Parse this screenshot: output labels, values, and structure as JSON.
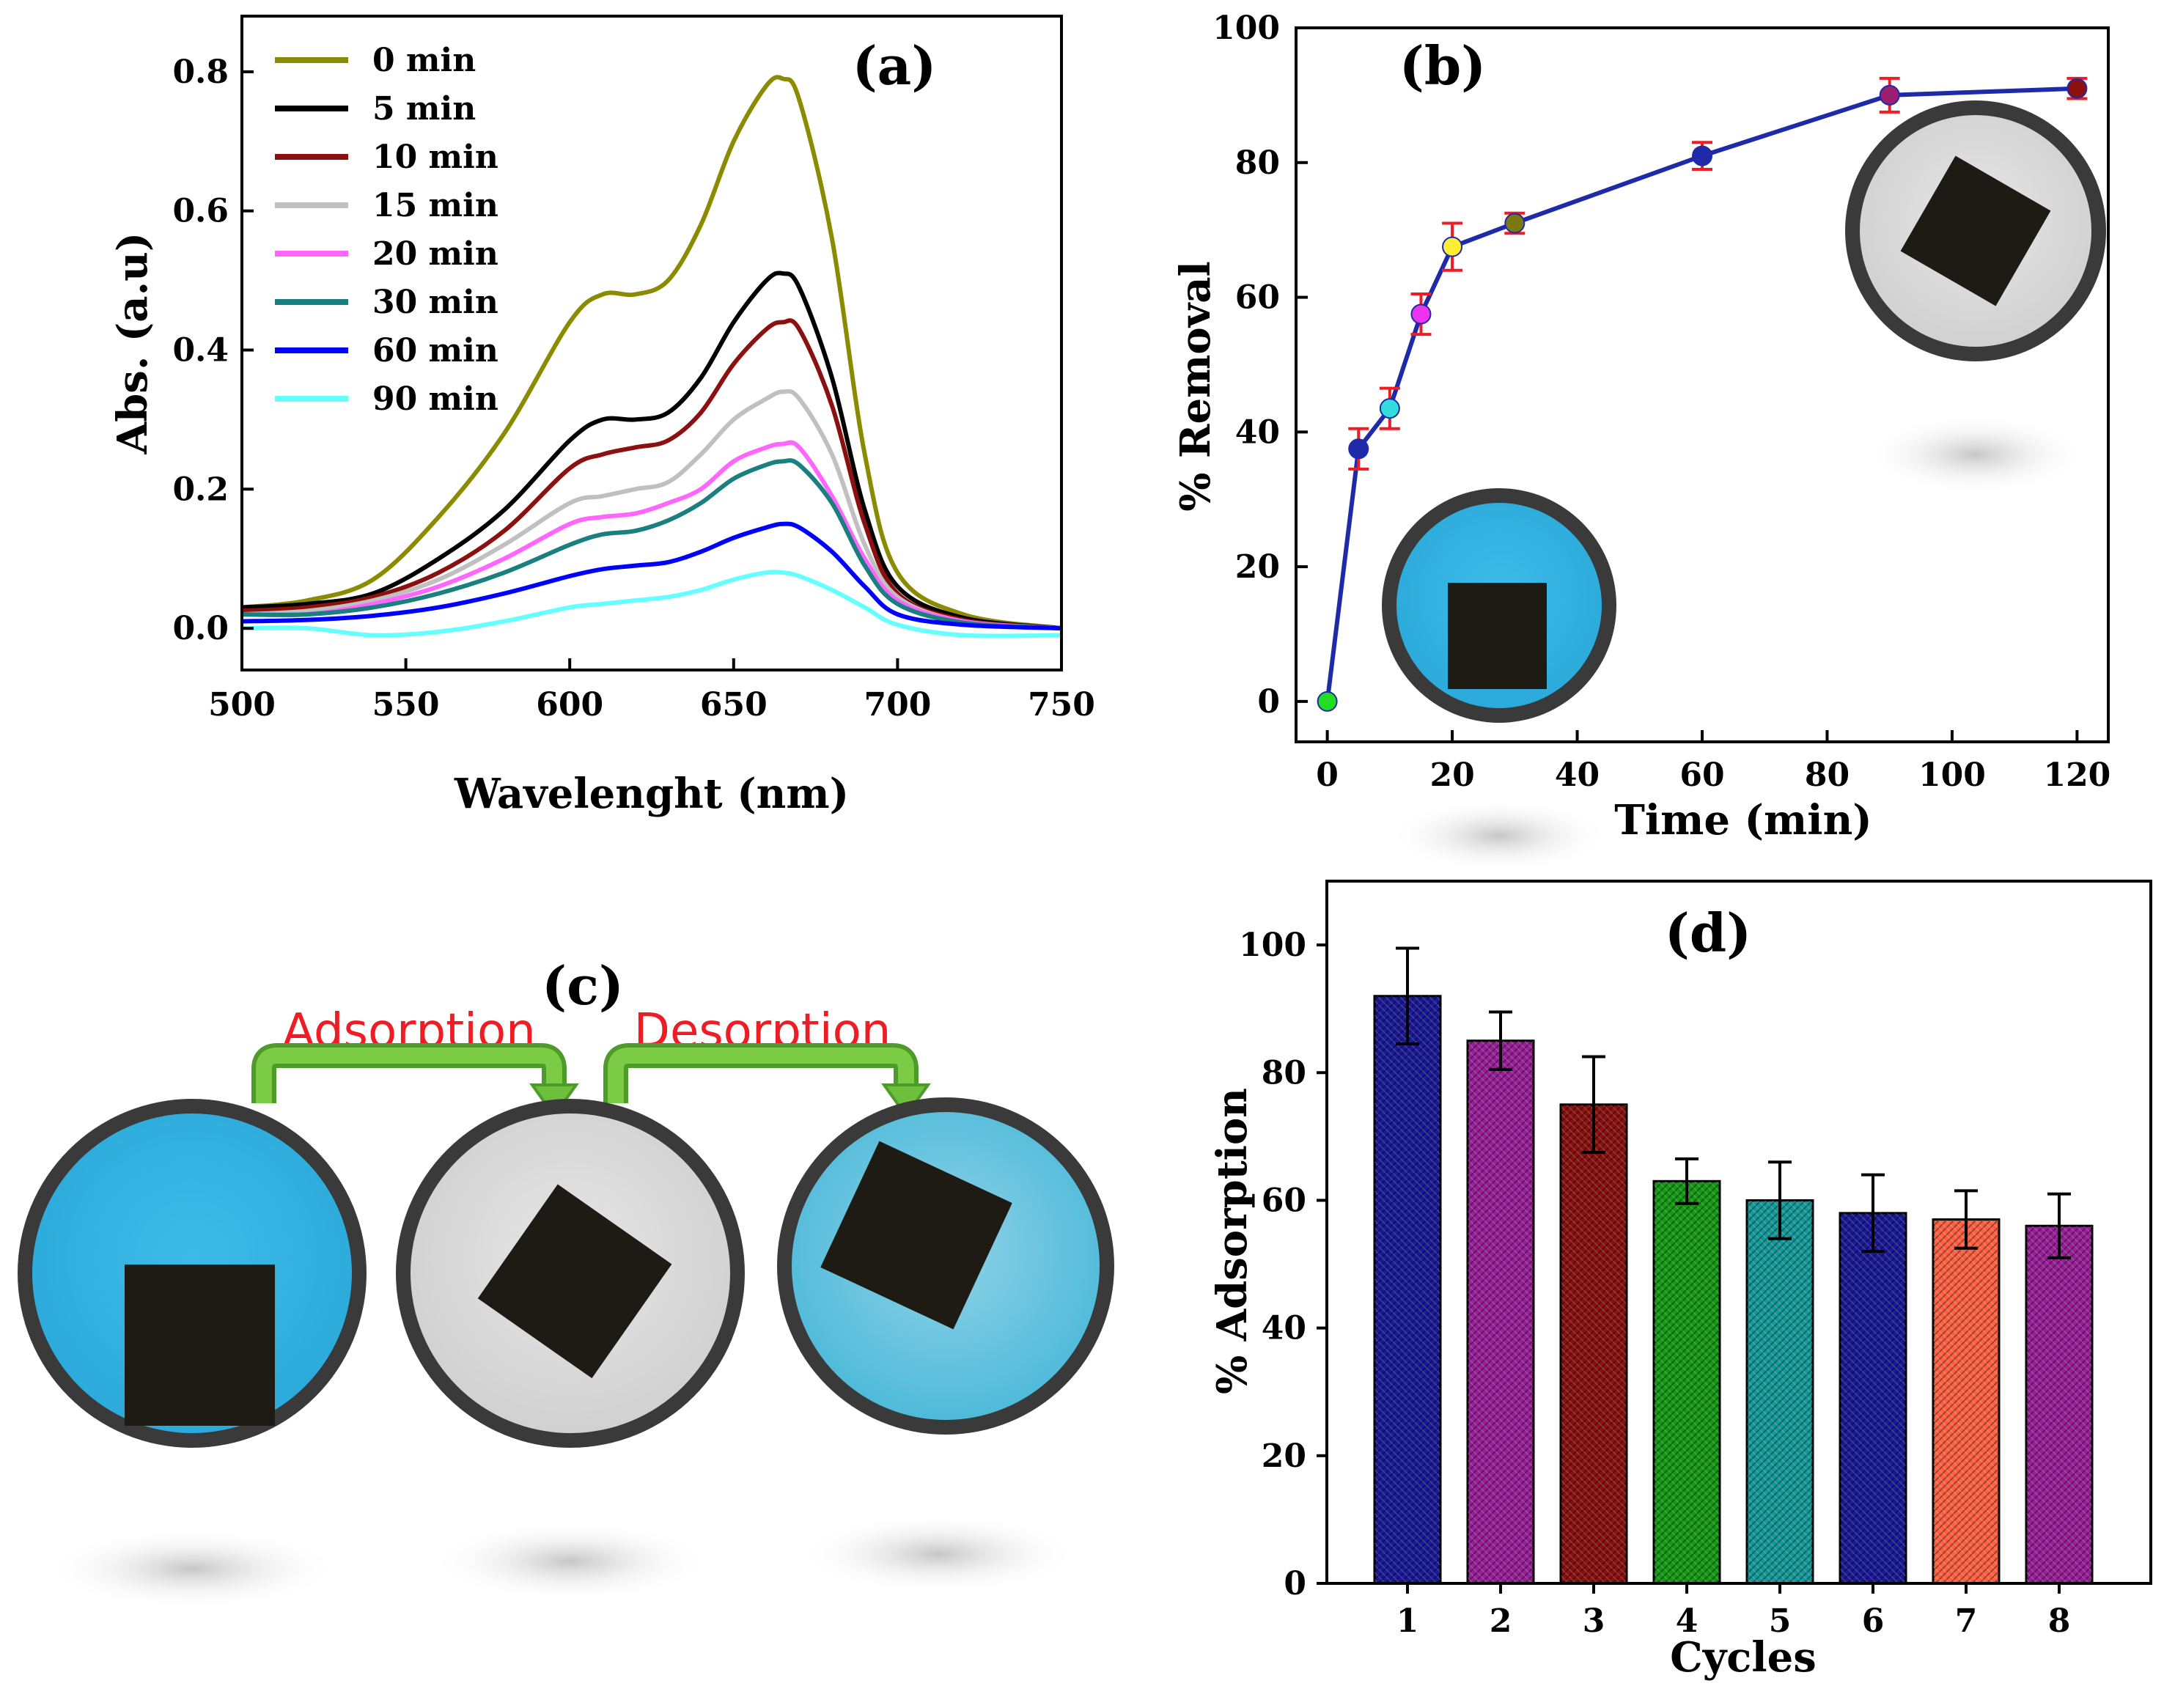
{
  "colors": {
    "blue_solution": "#2fb3e3",
    "clear_solution": "#d9d9d9",
    "dish_rim": "#3a3a3a",
    "sample": "#1e1a14",
    "arrow_green": "#6dbf3c",
    "flow_label": "#ee1c24",
    "panel_b_line": "#1f2aa8"
  },
  "panels": {
    "c": {
      "label": "(c)",
      "step1": "Adsorption",
      "step2": "Desorption",
      "dishes": [
        {
          "state": "dye-solution",
          "icon": "petri-dish-blue-icon"
        },
        {
          "state": "decolorized",
          "icon": "petri-dish-clear-icon"
        },
        {
          "state": "desorbed",
          "icon": "petri-dish-blue-icon"
        }
      ]
    }
  },
  "chart_data": [
    {
      "id": "a",
      "type": "line",
      "label": "(a)",
      "xlabel": "Wavelenght (nm)",
      "ylabel": "Abs. (a.u)",
      "xlim": [
        500,
        750
      ],
      "ylim": [
        -0.06,
        0.88
      ],
      "xticks": [
        500,
        550,
        600,
        650,
        700,
        750
      ],
      "yticks": [
        0.0,
        0.2,
        0.4,
        0.6,
        0.8
      ],
      "ytick_labels": [
        "0.0",
        "0.2",
        "0.4",
        "0.6",
        "0.8"
      ],
      "x": [
        500,
        520,
        540,
        560,
        580,
        600,
        610,
        620,
        630,
        640,
        650,
        660,
        665,
        670,
        680,
        690,
        700,
        720,
        750
      ],
      "series": [
        {
          "name": "0 min",
          "color": "#8b8b00",
          "values": [
            0.03,
            0.04,
            0.07,
            0.16,
            0.28,
            0.44,
            0.48,
            0.48,
            0.5,
            0.58,
            0.7,
            0.78,
            0.79,
            0.76,
            0.56,
            0.25,
            0.08,
            0.02,
            0.0
          ]
        },
        {
          "name": "5 min",
          "color": "#000000",
          "values": [
            0.03,
            0.035,
            0.05,
            0.1,
            0.17,
            0.27,
            0.3,
            0.3,
            0.31,
            0.36,
            0.44,
            0.5,
            0.51,
            0.49,
            0.36,
            0.17,
            0.06,
            0.015,
            0.0
          ]
        },
        {
          "name": "10 min",
          "color": "#8b1010",
          "values": [
            0.025,
            0.03,
            0.045,
            0.08,
            0.14,
            0.23,
            0.25,
            0.26,
            0.27,
            0.31,
            0.38,
            0.43,
            0.44,
            0.43,
            0.32,
            0.15,
            0.05,
            0.012,
            0.0
          ]
        },
        {
          "name": "15 min",
          "color": "#c0c0c0",
          "values": [
            0.02,
            0.025,
            0.04,
            0.07,
            0.12,
            0.18,
            0.19,
            0.2,
            0.21,
            0.25,
            0.3,
            0.33,
            0.34,
            0.33,
            0.25,
            0.12,
            0.045,
            0.01,
            0.0
          ]
        },
        {
          "name": "20 min",
          "color": "#ff66ff",
          "values": [
            0.02,
            0.02,
            0.035,
            0.06,
            0.1,
            0.15,
            0.16,
            0.165,
            0.18,
            0.2,
            0.24,
            0.26,
            0.265,
            0.26,
            0.19,
            0.1,
            0.04,
            0.01,
            0.0
          ]
        },
        {
          "name": "30 min",
          "color": "#1a7f7f",
          "values": [
            0.02,
            0.02,
            0.03,
            0.05,
            0.08,
            0.12,
            0.135,
            0.14,
            0.155,
            0.18,
            0.215,
            0.235,
            0.24,
            0.235,
            0.18,
            0.09,
            0.035,
            0.008,
            0.0
          ]
        },
        {
          "name": "60 min",
          "color": "#0000ff",
          "values": [
            0.01,
            0.012,
            0.018,
            0.03,
            0.05,
            0.075,
            0.085,
            0.09,
            0.095,
            0.11,
            0.13,
            0.145,
            0.15,
            0.145,
            0.11,
            0.06,
            0.02,
            0.005,
            0.0
          ]
        },
        {
          "name": "90 min",
          "color": "#66ffff",
          "values": [
            0.0,
            0.0,
            -0.01,
            -0.005,
            0.01,
            0.03,
            0.035,
            0.04,
            0.045,
            0.055,
            0.07,
            0.08,
            0.08,
            0.075,
            0.055,
            0.03,
            0.005,
            -0.01,
            -0.01
          ]
        }
      ]
    },
    {
      "id": "b",
      "type": "scatter",
      "label": "(b)",
      "xlabel": "Time (min)",
      "ylabel": "% Removal",
      "xlim": [
        -5,
        125
      ],
      "ylim": [
        -6,
        100
      ],
      "xticks": [
        0,
        20,
        40,
        60,
        80,
        100,
        120
      ],
      "yticks": [
        0,
        20,
        40,
        60,
        80,
        100
      ],
      "line_color": "#1f2aa8",
      "points": [
        {
          "x": 0,
          "y": 0,
          "err": 0,
          "color": "#22dd22"
        },
        {
          "x": 5,
          "y": 37.5,
          "err": 3,
          "color": "#1f2aa8"
        },
        {
          "x": 10,
          "y": 43.5,
          "err": 3,
          "color": "#33dddd"
        },
        {
          "x": 15,
          "y": 57.5,
          "err": 3,
          "color": "#ee33ee"
        },
        {
          "x": 20,
          "y": 67.5,
          "err": 3.5,
          "color": "#ffee33"
        },
        {
          "x": 30,
          "y": 71,
          "err": 1.5,
          "color": "#7a7a10"
        },
        {
          "x": 60,
          "y": 81,
          "err": 2,
          "color": "#1f2aa8"
        },
        {
          "x": 90,
          "y": 90,
          "err": 2.5,
          "color": "#9b1f6e"
        },
        {
          "x": 120,
          "y": 91,
          "err": 1.5,
          "color": "#8b1010"
        }
      ]
    },
    {
      "id": "d",
      "type": "bar",
      "label": "(d)",
      "xlabel": "Cycles",
      "ylabel": "% Adsorption",
      "categories": [
        "1",
        "2",
        "3",
        "4",
        "5",
        "6",
        "7",
        "8"
      ],
      "values": [
        92,
        85,
        75,
        63,
        60,
        58,
        57,
        56
      ],
      "errors": [
        7.5,
        4.5,
        7.5,
        3.5,
        6,
        6,
        4.5,
        5
      ],
      "colors": [
        "#1a1a99",
        "#991f99",
        "#8b1010",
        "#139913",
        "#139999",
        "#1a1a99",
        "#ff6040",
        "#991f99"
      ],
      "ylim": [
        0,
        110
      ],
      "yticks": [
        0,
        20,
        40,
        60,
        80,
        100
      ]
    }
  ]
}
